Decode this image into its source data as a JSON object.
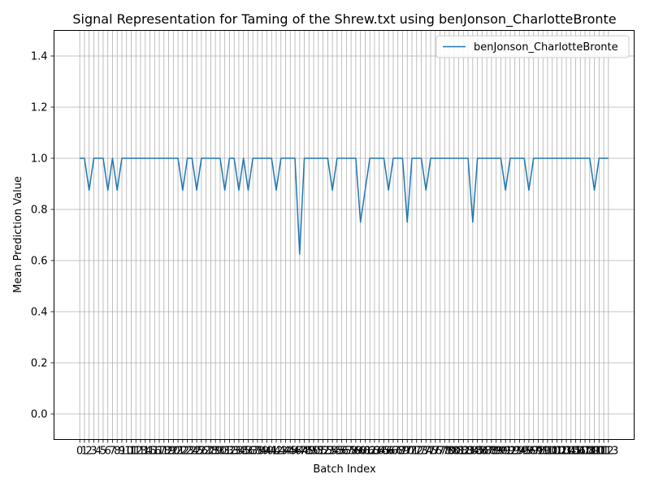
{
  "chart_data": {
    "type": "line",
    "title": "Signal Representation for Taming of the Shrew.txt using benJonson_CharlotteBronte",
    "xlabel": "Batch Index",
    "ylabel": "Mean Prediction Value",
    "ylim": [
      -0.1,
      1.5
    ],
    "xlim": [
      -5.5,
      118.5
    ],
    "yticks": [
      0.0,
      0.2,
      0.4,
      0.6,
      0.8,
      1.0,
      1.2,
      1.4
    ],
    "grid": true,
    "legend_position": "top-right",
    "series": [
      {
        "name": "benJonson_CharlotteBronte",
        "color": "#1f77b4",
        "x": [
          0,
          1,
          2,
          3,
          4,
          5,
          6,
          7,
          8,
          9,
          10,
          11,
          12,
          13,
          14,
          15,
          16,
          17,
          18,
          19,
          20,
          21,
          22,
          23,
          24,
          25,
          26,
          27,
          28,
          29,
          30,
          31,
          32,
          33,
          34,
          35,
          36,
          37,
          38,
          39,
          40,
          41,
          42,
          43,
          44,
          45,
          46,
          47,
          48,
          49,
          50,
          51,
          52,
          53,
          54,
          55,
          56,
          57,
          58,
          59,
          60,
          61,
          62,
          63,
          64,
          65,
          66,
          67,
          68,
          69,
          70,
          71,
          72,
          73,
          74,
          75,
          76,
          77,
          78,
          79,
          80,
          81,
          82,
          83,
          84,
          85,
          86,
          87,
          88,
          89,
          90,
          91,
          92,
          93,
          94,
          95,
          96,
          97,
          98,
          99,
          100,
          101,
          102,
          103,
          104,
          105,
          106,
          107,
          108,
          109,
          110,
          111,
          112,
          113
        ],
        "values": [
          1.0,
          1.0,
          0.875,
          1.0,
          1.0,
          1.0,
          0.875,
          1.0,
          0.875,
          1.0,
          1.0,
          1.0,
          1.0,
          1.0,
          1.0,
          1.0,
          1.0,
          1.0,
          1.0,
          1.0,
          1.0,
          1.0,
          0.875,
          1.0,
          1.0,
          0.875,
          1.0,
          1.0,
          1.0,
          1.0,
          1.0,
          0.875,
          1.0,
          1.0,
          0.875,
          1.0,
          0.875,
          1.0,
          1.0,
          1.0,
          1.0,
          1.0,
          0.875,
          1.0,
          1.0,
          1.0,
          1.0,
          0.625,
          1.0,
          1.0,
          1.0,
          1.0,
          1.0,
          1.0,
          0.875,
          1.0,
          1.0,
          1.0,
          1.0,
          1.0,
          0.75,
          0.875,
          1.0,
          1.0,
          1.0,
          1.0,
          0.875,
          1.0,
          1.0,
          1.0,
          0.75,
          1.0,
          1.0,
          1.0,
          0.875,
          1.0,
          1.0,
          1.0,
          1.0,
          1.0,
          1.0,
          1.0,
          1.0,
          1.0,
          0.75,
          1.0,
          1.0,
          1.0,
          1.0,
          1.0,
          1.0,
          0.875,
          1.0,
          1.0,
          1.0,
          1.0,
          0.875,
          1.0,
          1.0,
          1.0,
          1.0,
          1.0,
          1.0,
          1.0,
          1.0,
          1.0,
          1.0,
          1.0,
          1.0,
          1.0,
          0.875,
          1.0,
          1.0,
          1.0
        ]
      }
    ]
  }
}
